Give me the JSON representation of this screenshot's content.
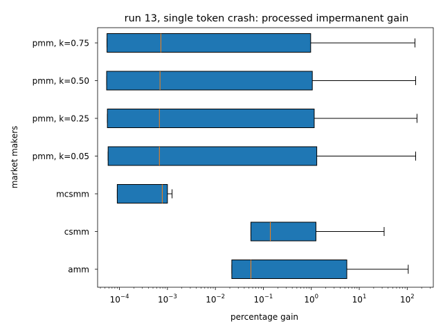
{
  "chart_data": {
    "type": "box",
    "orientation": "horizontal",
    "title": "run 13, single token crash: processed impermanent gain",
    "xlabel": "percentage gain",
    "ylabel": "market makers",
    "xscale": "log",
    "xlim": [
      3.5e-05,
      350
    ],
    "xticks": [
      {
        "value": 0.0001,
        "base": "10",
        "exp": "−4"
      },
      {
        "value": 0.001,
        "base": "10",
        "exp": "−3"
      },
      {
        "value": 0.01,
        "base": "10",
        "exp": "−2"
      },
      {
        "value": 0.1,
        "base": "10",
        "exp": "−1"
      },
      {
        "value": 1,
        "base": "10",
        "exp": "0"
      },
      {
        "value": 10,
        "base": "10",
        "exp": "1"
      },
      {
        "value": 100,
        "base": "10",
        "exp": "2"
      }
    ],
    "grid": false,
    "box_color": "#1f77b4",
    "median_color": "#ff7f0e",
    "categories": [
      "amm",
      "csmm",
      "mcsmm",
      "pmm, k=0.05",
      "pmm, k=0.25",
      "pmm, k=0.50",
      "pmm, k=0.75"
    ],
    "boxes": [
      {
        "label": "amm",
        "whisker_low": 0.022,
        "q1": 0.022,
        "median": 0.055,
        "q3": 5.5,
        "whisker_high": 105
      },
      {
        "label": "csmm",
        "whisker_low": 0.055,
        "q1": 0.055,
        "median": 0.14,
        "q3": 1.25,
        "whisker_high": 33
      },
      {
        "label": "mcsmm",
        "whisker_low": 9e-05,
        "q1": 9e-05,
        "median": 0.00078,
        "q3": 0.001,
        "whisker_high": 0.00125
      },
      {
        "label": "pmm, k=0.05",
        "whisker_low": 5.8e-05,
        "q1": 5.8e-05,
        "median": 0.00068,
        "q3": 1.3,
        "whisker_high": 150
      },
      {
        "label": "pmm, k=0.25",
        "whisker_low": 5.6e-05,
        "q1": 5.6e-05,
        "median": 0.00068,
        "q3": 1.15,
        "whisker_high": 160
      },
      {
        "label": "pmm, k=0.50",
        "whisker_low": 5.4e-05,
        "q1": 5.4e-05,
        "median": 0.0007,
        "q3": 1.05,
        "whisker_high": 150
      },
      {
        "label": "pmm, k=0.75",
        "whisker_low": 5.5e-05,
        "q1": 5.5e-05,
        "median": 0.00073,
        "q3": 0.97,
        "whisker_high": 145
      }
    ]
  }
}
